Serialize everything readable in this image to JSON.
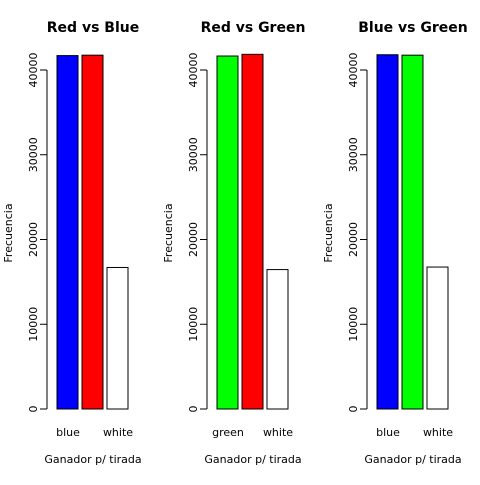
{
  "chart_data": [
    {
      "type": "bar",
      "title": "Red vs Blue",
      "xlabel": "Ganador p/ tirada",
      "ylabel": "Frecuencia",
      "ylim": [
        0,
        45000
      ],
      "yticks": [
        "0",
        "10000",
        "20000",
        "30000",
        "40000"
      ],
      "categories": [
        "blue",
        "red",
        "white"
      ],
      "shown_category_labels": [
        "blue",
        "",
        "white"
      ],
      "values": [
        41700,
        41750,
        16700
      ],
      "colors": [
        "#0000ff",
        "#ff0000",
        "#ffffff"
      ]
    },
    {
      "type": "bar",
      "title": "Red vs Green",
      "xlabel": "Ganador p/ tirada",
      "ylabel": "Frecuencia",
      "ylim": [
        0,
        45000
      ],
      "yticks": [
        "0",
        "10000",
        "20000",
        "30000",
        "40000"
      ],
      "categories": [
        "green",
        "red",
        "white"
      ],
      "shown_category_labels": [
        "green",
        "",
        "white"
      ],
      "values": [
        41650,
        41850,
        16450
      ],
      "colors": [
        "#00ff00",
        "#ff0000",
        "#ffffff"
      ]
    },
    {
      "type": "bar",
      "title": "Blue vs Green",
      "xlabel": "Ganador p/ tirada",
      "ylabel": "Frecuencia",
      "ylim": [
        0,
        45000
      ],
      "yticks": [
        "0",
        "10000",
        "20000",
        "30000",
        "40000"
      ],
      "categories": [
        "blue",
        "green",
        "white"
      ],
      "shown_category_labels": [
        "blue",
        "",
        "white"
      ],
      "values": [
        41800,
        41750,
        16750
      ],
      "colors": [
        "#0000ff",
        "#00ff00",
        "#ffffff"
      ]
    }
  ]
}
